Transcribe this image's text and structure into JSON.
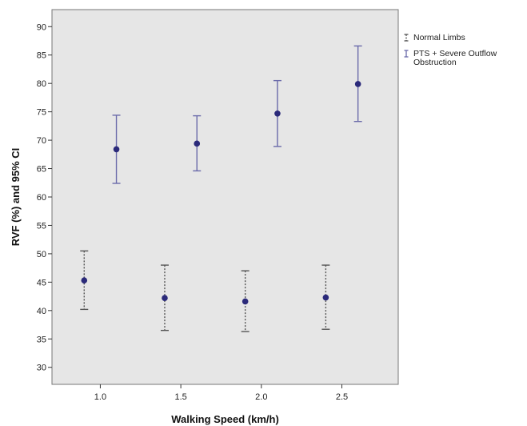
{
  "chart_data": {
    "type": "scatter",
    "chart_kind": "error-bar",
    "xlabel": "Walking Speed (km/h)",
    "ylabel": "RVF (%) and 95% CI",
    "xlim": [
      0.7,
      2.85
    ],
    "ylim": [
      27,
      93
    ],
    "x_ticks": [
      {
        "value": 1.0,
        "label": "1.0"
      },
      {
        "value": 1.5,
        "label": "1.5"
      },
      {
        "value": 2.0,
        "label": "2.0"
      },
      {
        "value": 2.5,
        "label": "2.5"
      }
    ],
    "y_ticks": [
      30,
      35,
      40,
      45,
      50,
      55,
      60,
      65,
      70,
      75,
      80,
      85,
      90
    ],
    "grid": false,
    "legend_position": "outside-top-right",
    "series": [
      {
        "name": "Normal Limbs",
        "whisker_style": "dotted",
        "whisker_color": "#555555",
        "marker_color": "#2b2a7a",
        "points": [
          {
            "x": 0.9,
            "y": 45.3,
            "lower": 40.2,
            "upper": 50.5
          },
          {
            "x": 1.4,
            "y": 42.2,
            "lower": 36.5,
            "upper": 48.0
          },
          {
            "x": 1.9,
            "y": 41.6,
            "lower": 36.3,
            "upper": 47.0
          },
          {
            "x": 2.4,
            "y": 42.3,
            "lower": 36.7,
            "upper": 48.0
          }
        ]
      },
      {
        "name": "PTS + Severe Outflow Obstruction",
        "legend_lines": [
          "PTS + Severe Outflow",
          "Obstruction"
        ],
        "whisker_style": "solid",
        "whisker_color": "#6a6aaa",
        "marker_color": "#2b2a7a",
        "points": [
          {
            "x": 1.1,
            "y": 68.4,
            "lower": 62.4,
            "upper": 74.4
          },
          {
            "x": 1.6,
            "y": 69.4,
            "lower": 64.6,
            "upper": 74.3
          },
          {
            "x": 2.1,
            "y": 74.7,
            "lower": 68.9,
            "upper": 80.5
          },
          {
            "x": 2.6,
            "y": 79.9,
            "lower": 73.3,
            "upper": 86.6
          }
        ]
      }
    ],
    "colors": {
      "plot_background": "#e6e6e6",
      "frame": "#777777"
    }
  }
}
